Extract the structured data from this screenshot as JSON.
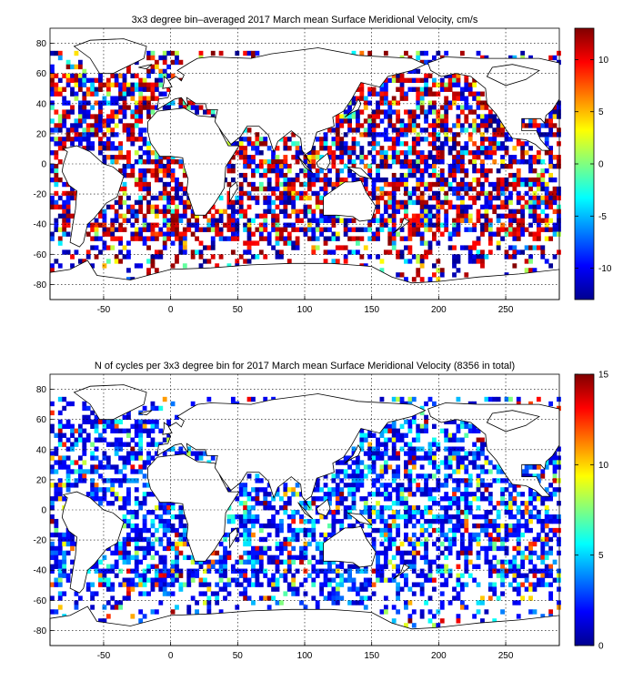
{
  "chart_data": [
    {
      "type": "heatmap",
      "title": "3x3 degree bin–averaged 2017 March mean Surface Meridional Velocity, cm/s",
      "xlim": [
        -90,
        290
      ],
      "ylim": [
        -90,
        90
      ],
      "xticks": [
        -50,
        0,
        50,
        100,
        150,
        200,
        250
      ],
      "yticks": [
        -80,
        -60,
        -40,
        -20,
        0,
        20,
        40,
        60,
        80
      ],
      "bin_size_deg": 3,
      "colormap": "jet",
      "colorbar": {
        "range": [
          -13,
          13
        ],
        "ticks": [
          -10,
          -5,
          0,
          5,
          10
        ]
      },
      "grid": true
    },
    {
      "type": "heatmap",
      "title": "N of cycles per 3x3 degree bin for 2017 March mean Surface Meridional Velocity (8356 in total)",
      "xlim": [
        -90,
        290
      ],
      "ylim": [
        -90,
        90
      ],
      "xticks": [
        -50,
        0,
        50,
        100,
        150,
        200,
        250
      ],
      "yticks": [
        -80,
        -60,
        -40,
        -20,
        0,
        20,
        40,
        60,
        80
      ],
      "bin_size_deg": 3,
      "colormap": "jet",
      "colorbar": {
        "range": [
          0,
          15
        ],
        "ticks": [
          0,
          5,
          10,
          15
        ]
      },
      "total_cycles": 8356,
      "grid": true
    }
  ]
}
